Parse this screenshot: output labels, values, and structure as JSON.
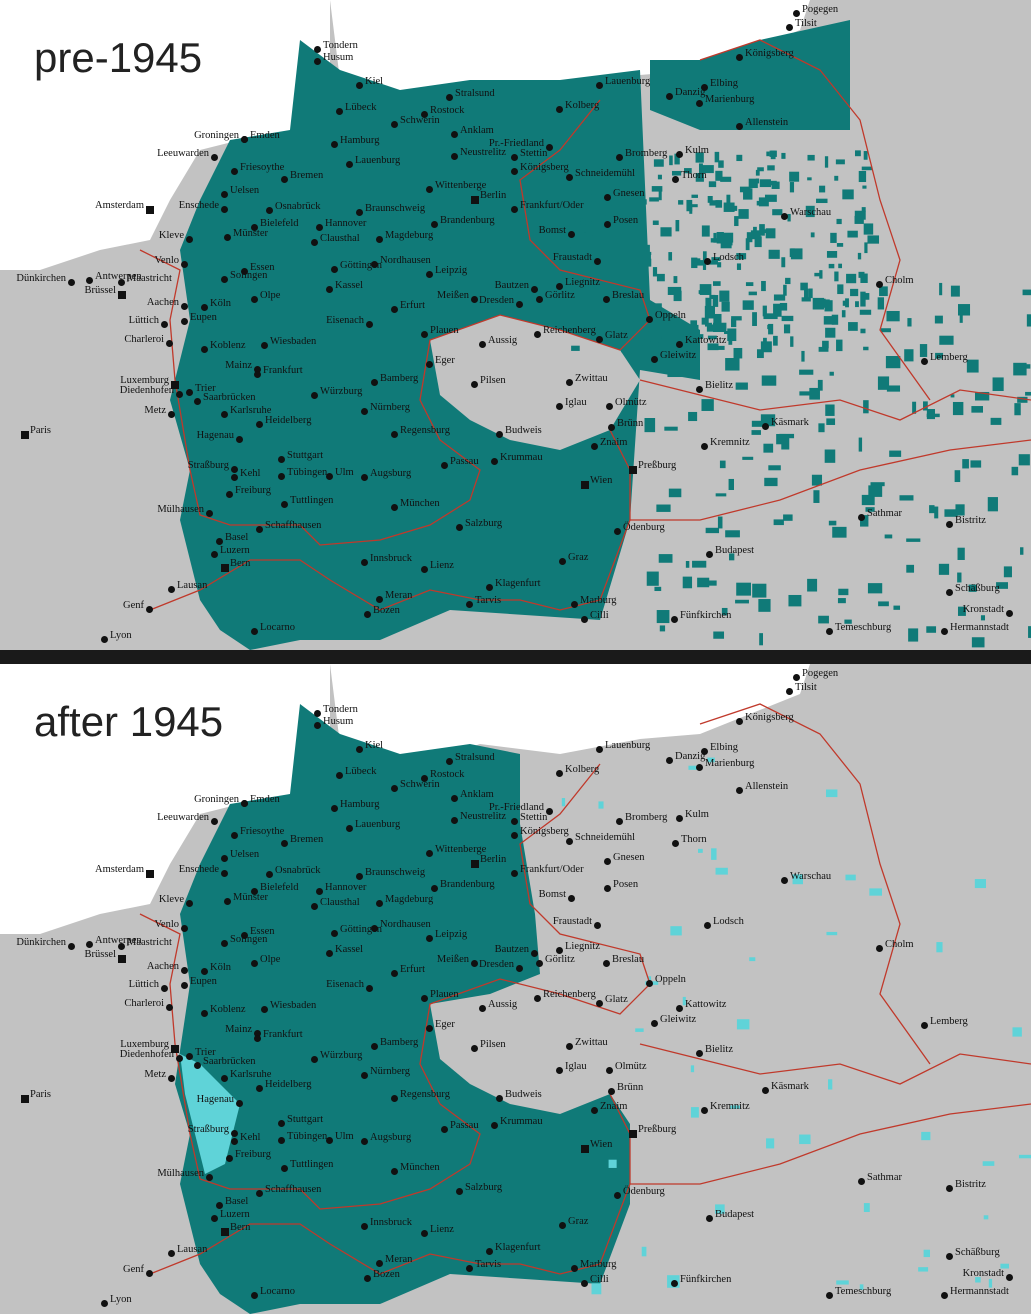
{
  "maps": [
    {
      "title": "pre-1945",
      "german_area_color": "#107a78",
      "background_color": "#c2c2c2",
      "sea_color": "#ffffff",
      "border_color": "#c0392b"
    },
    {
      "title": "after 1945",
      "german_area_color": "#107a78",
      "remnant_color": "#5fd3d8",
      "background_color": "#c2c2c2",
      "sea_color": "#ffffff",
      "border_color": "#c0392b"
    }
  ],
  "cities": [
    "Pogegen",
    "Tilsit",
    "Tondern",
    "Husum",
    "Königsberg",
    "Kiel",
    "Lauenburg",
    "Elbing",
    "Danzig",
    "Marienburg",
    "Stralsund",
    "Lübeck",
    "Rostock",
    "Schwerin",
    "Allenstein",
    "Kolberg",
    "Anklam",
    "Groningen",
    "Emden",
    "Hamburg",
    "Pr.-Friedland",
    "Neustrelitz",
    "Stettin",
    "Kulm",
    "Leeuwarden",
    "Bromberg",
    "Königsberg",
    "Schneidemühl",
    "Thorn",
    "Friesoythe",
    "Bremen",
    "Lauenburg",
    "Uelsen",
    "Wittenberge",
    "Amsterdam",
    "Enschede",
    "Berlin",
    "Frankfurt/Oder",
    "Osnabrück",
    "Braunschweig",
    "Gnesen",
    "Warschau",
    "Hannover",
    "Bielefeld",
    "Brandenburg",
    "Posen",
    "Münster",
    "Clausthal",
    "Magdeburg",
    "Bomst",
    "Kleve",
    "Essen",
    "Göttingen",
    "Nordhausen",
    "Venlo",
    "Leipzig",
    "Lodsch",
    "Fraustadt",
    "Solingen",
    "Kassel",
    "Dünkirchen",
    "Antwerpen",
    "Maastricht",
    "Brüssel",
    "Aachen",
    "Köln",
    "Olpe",
    "Erfurt",
    "Meißen",
    "Liegnitz",
    "Bautzen",
    "Görlitz",
    "Dresden",
    "Breslau",
    "Cholm",
    "Lüttich",
    "Eupen",
    "Eisenach",
    "Oppeln",
    "Plauen",
    "Reichenberg",
    "Glatz",
    "Charleroi",
    "Koblenz",
    "Wiesbaden",
    "Aussig",
    "Kattowitz",
    "Gleiwitz",
    "Lemberg",
    "Mainz",
    "Frankfurt",
    "Eger",
    "Luxemburg",
    "Pilsen",
    "Zwittau",
    "Bielitz",
    "Bamberg",
    "Diedenhofen",
    "Trier",
    "Saarbrücken",
    "Würzburg",
    "Karlsruhe",
    "Iglau",
    "Olmütz",
    "Metz",
    "Nürnberg",
    "Heidelberg",
    "Regensburg",
    "Paris",
    "Brünn",
    "Käsmark",
    "Budweis",
    "Kremnitz",
    "Hagenau",
    "Stuttgart",
    "Znaim",
    "Preßburg",
    "Straßburg",
    "Kehl",
    "Tübingen",
    "Ulm",
    "Augsburg",
    "Passau",
    "Krummau",
    "Wien",
    "Freiburg",
    "Tuttlingen",
    "München",
    "Mülhausen",
    "Sathmar",
    "Bistritz",
    "Schaffhausen",
    "Salzburg",
    "Ödenburg",
    "Basel",
    "Budapest",
    "Luzern",
    "Bern",
    "Innsbruck",
    "Lienz",
    "Graz",
    "Lausan",
    "Klagenfurt",
    "Schäßburg",
    "Kronstadt",
    "Genf",
    "Locarno",
    "Meran",
    "Bozen",
    "Tarvis",
    "Marburg",
    "Cilli",
    "Fünfkirchen",
    "Temeschburg",
    "Hermannstadt",
    "Lyon"
  ],
  "capital_cities": [
    "Amsterdam",
    "Berlin",
    "Brüssel",
    "Luxemburg",
    "Paris",
    "Preßburg",
    "Wien",
    "Bern"
  ]
}
